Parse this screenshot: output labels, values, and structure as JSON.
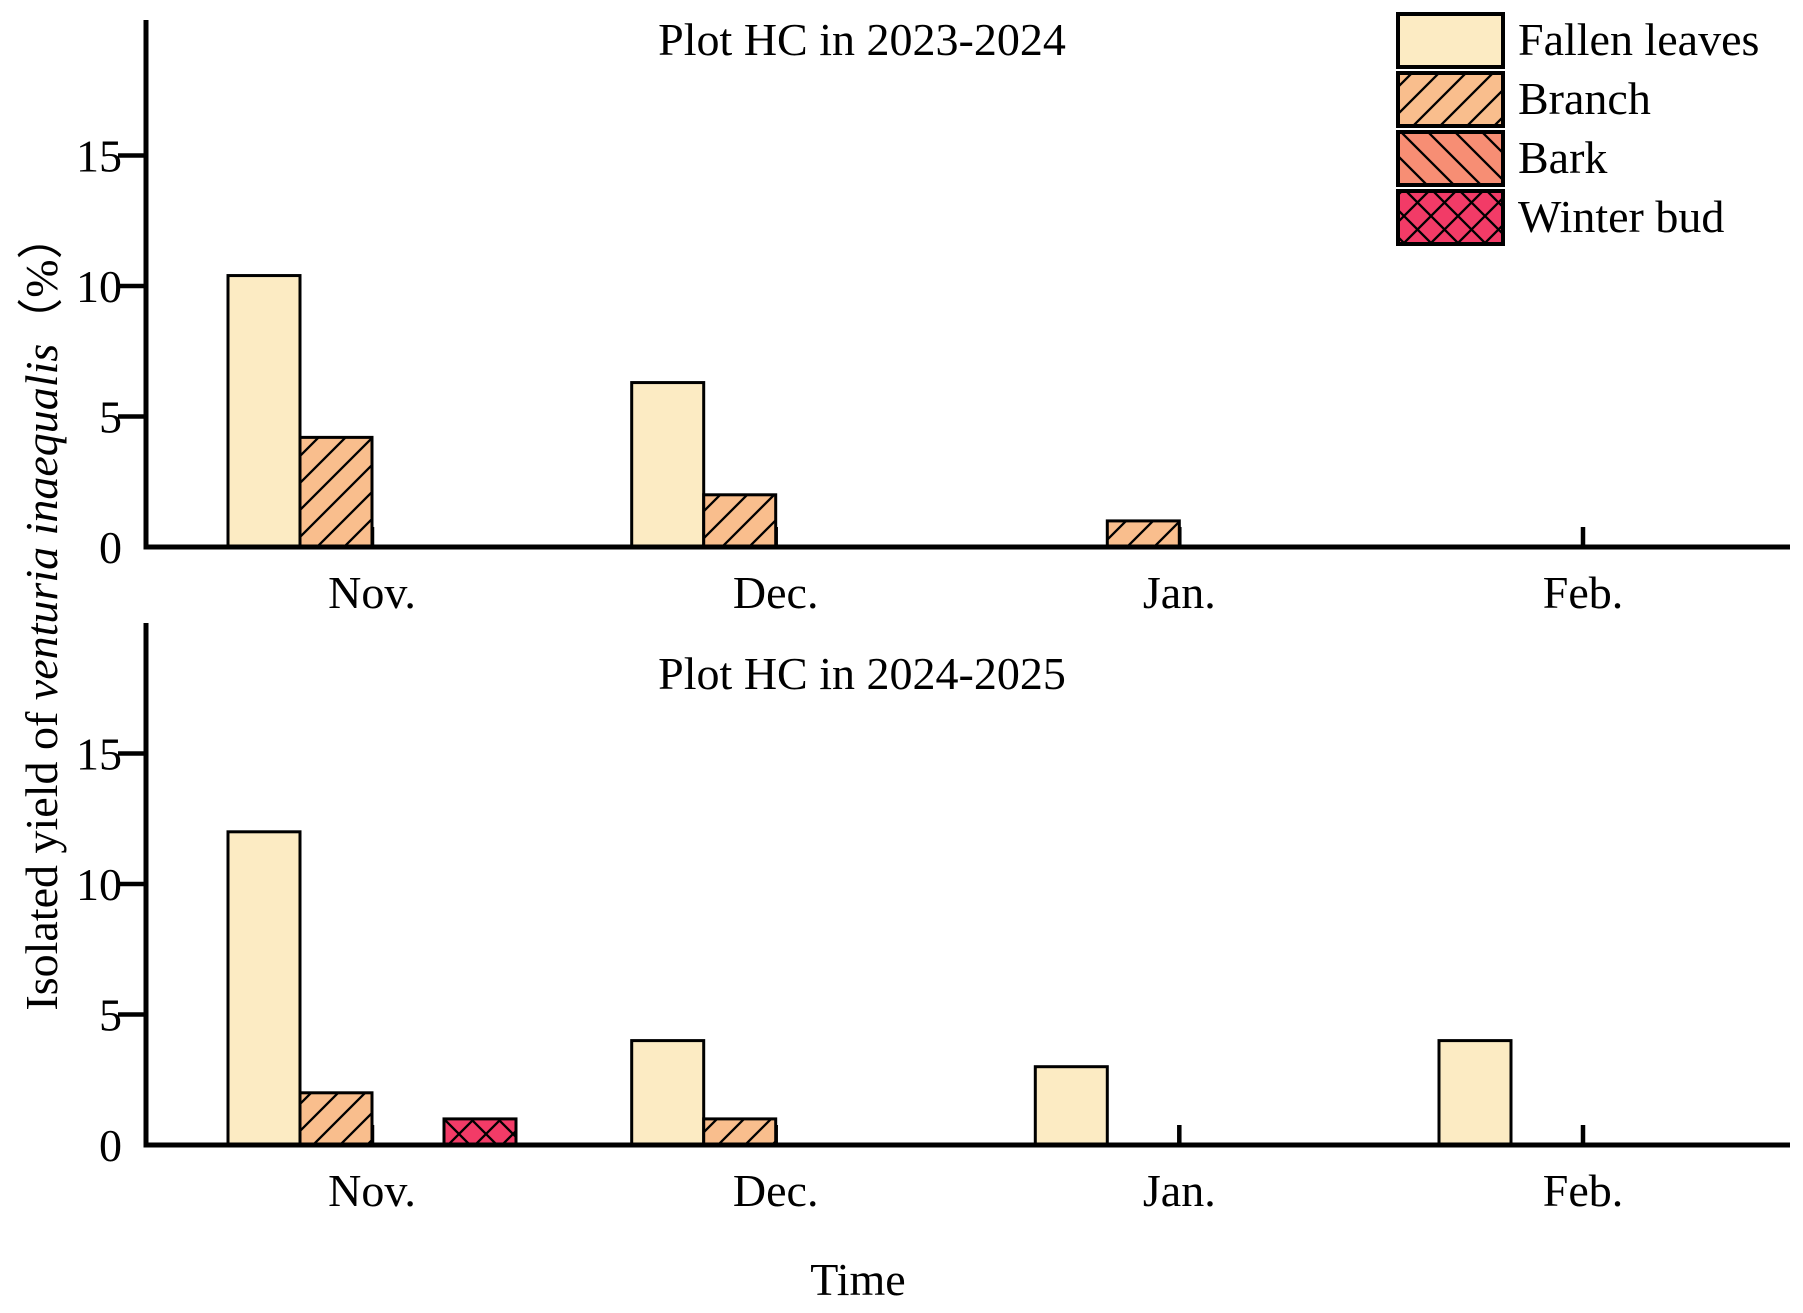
{
  "figure": {
    "ylabel_prefix": "Isolated yield of ",
    "ylabel_italic": "venturia inaequalis",
    "ylabel_suffix": "（%）",
    "xlabel": "Time",
    "legend": [
      {
        "label": "Fallen leaves",
        "fill": "#FCEBC3",
        "hatch": "none"
      },
      {
        "label": "Branch",
        "fill": "#F9BE8D",
        "hatch": "diag-right"
      },
      {
        "label": "Bark",
        "fill": "#F78E74",
        "hatch": "diag-left"
      },
      {
        "label": "Winter bud",
        "fill": "#F23B67",
        "hatch": "cross"
      }
    ],
    "colors": {
      "axis": "#000000",
      "background": "#FFFFFF",
      "bar_edge": "#000000"
    }
  },
  "chart_data": [
    {
      "type": "bar",
      "title": "Plot HC in 2023-2024",
      "categories": [
        "Nov.",
        "Dec.",
        "Jan.",
        "Feb."
      ],
      "series": [
        {
          "name": "Fallen leaves",
          "values": [
            10.4,
            6.3,
            0,
            0
          ]
        },
        {
          "name": "Branch",
          "values": [
            4.2,
            2.0,
            1.0,
            0
          ]
        },
        {
          "name": "Bark",
          "values": [
            0,
            0,
            0,
            0
          ]
        },
        {
          "name": "Winter bud",
          "values": [
            0,
            0,
            0,
            0
          ]
        }
      ],
      "ylim": [
        0,
        20
      ],
      "yticks": [
        0,
        5,
        10,
        15
      ],
      "grid": false,
      "legend_position": "upper-right"
    },
    {
      "type": "bar",
      "title": "Plot HC in 2024-2025",
      "categories": [
        "Nov.",
        "Dec.",
        "Jan.",
        "Feb."
      ],
      "series": [
        {
          "name": "Fallen leaves",
          "values": [
            12.0,
            4.0,
            3.0,
            4.0
          ]
        },
        {
          "name": "Branch",
          "values": [
            2.0,
            1.0,
            0,
            0
          ]
        },
        {
          "name": "Bark",
          "values": [
            0,
            0,
            0,
            0
          ]
        },
        {
          "name": "Winter bud",
          "values": [
            1.0,
            0,
            0,
            0
          ]
        }
      ],
      "ylim": [
        0,
        20
      ],
      "yticks": [
        0,
        5,
        10,
        15
      ],
      "grid": false,
      "legend_position": "none"
    }
  ]
}
